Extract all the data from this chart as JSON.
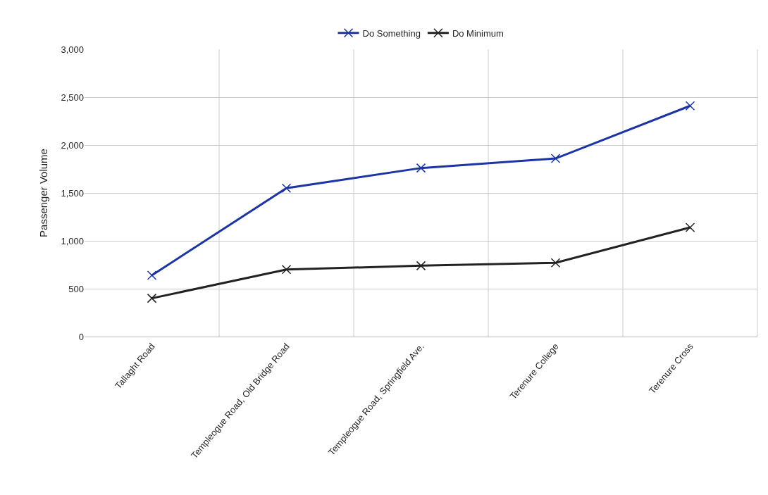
{
  "chart_data": {
    "type": "line",
    "ylabel": "Passenger Volume",
    "categories": [
      "Tallaght Road",
      "Templeogue Road, Old Bridge Road",
      "Templeogue Road, Springfield Ave.",
      "Terenure College",
      "Terenure Cross"
    ],
    "series": [
      {
        "name": "Do Something",
        "color": "#1b34a6",
        "values": [
          640,
          1550,
          1760,
          1860,
          2410
        ]
      },
      {
        "name": "Do Minimum",
        "color": "#222222",
        "values": [
          400,
          700,
          740,
          770,
          1140
        ]
      }
    ],
    "ylim": [
      0,
      3000
    ],
    "yticks": [
      {
        "value": 0,
        "label": "0"
      },
      {
        "value": 500,
        "label": "500"
      },
      {
        "value": 1000,
        "label": "1,000"
      },
      {
        "value": 1500,
        "label": "1,500"
      },
      {
        "value": 2000,
        "label": "2,000"
      },
      {
        "value": 2500,
        "label": "2,500"
      },
      {
        "value": 3000,
        "label": "3,000"
      }
    ],
    "grid": true,
    "legend": "top",
    "marker": "cross",
    "line_style": "solid"
  }
}
